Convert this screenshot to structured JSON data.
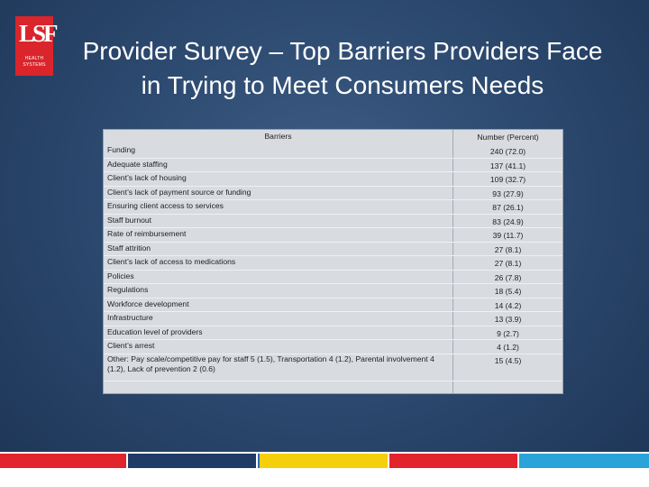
{
  "logo": {
    "mark": "LSF",
    "line1": "HEALTH",
    "line2": "SYSTEMS"
  },
  "title": {
    "line1": "Provider Survey – Top Barriers Providers Face",
    "line2": "in Trying to Meet Consumers Needs"
  },
  "table": {
    "header_barriers": "Barriers",
    "header_number": "Number (Percent)",
    "rows": [
      {
        "label": "Funding",
        "value": "240 (72.0)"
      },
      {
        "label": "Adequate staffing",
        "value": "137 (41.1)"
      },
      {
        "label": "Client’s lack of housing",
        "value": "109 (32.7)"
      },
      {
        "label": "Client’s lack of payment source or funding",
        "value": "93 (27.9)"
      },
      {
        "label": "Ensuring client access to services",
        "value": "87 (26.1)"
      },
      {
        "label": "Staff burnout",
        "value": "83 (24.9)"
      },
      {
        "label": "Rate of reimbursement",
        "value": "39 (11.7)"
      },
      {
        "label": "Staff attrition",
        "value": "27 (8.1)"
      },
      {
        "label": "Client’s lack of access to medications",
        "value": "27 (8.1)"
      },
      {
        "label": "Policies",
        "value": "26 (7.8)"
      },
      {
        "label": "Regulations",
        "value": "18 (5.4)"
      },
      {
        "label": "Workforce development",
        "value": "14 (4.2)"
      },
      {
        "label": "Infrastructure",
        "value": "13 (3.9)"
      },
      {
        "label": "Education level of providers",
        "value": "9 (2.7)"
      },
      {
        "label": "Client’s arrest",
        "value": "4 (1.2)"
      }
    ],
    "other": {
      "label": "Other: Pay scale/competitive pay for staff 5 (1.5), Transportation 4 (1.2), Parental involvement 4 (1.2), Lack of prevention 2 (0.6)",
      "value": "15 (4.5)"
    }
  },
  "colors": {
    "logo_red": "#d9252b",
    "footer": [
      "#e2242c",
      "#1f3b66",
      "#2f6cb5",
      "#f5cf0a",
      "#e2242c",
      "#2aa3d9"
    ]
  }
}
